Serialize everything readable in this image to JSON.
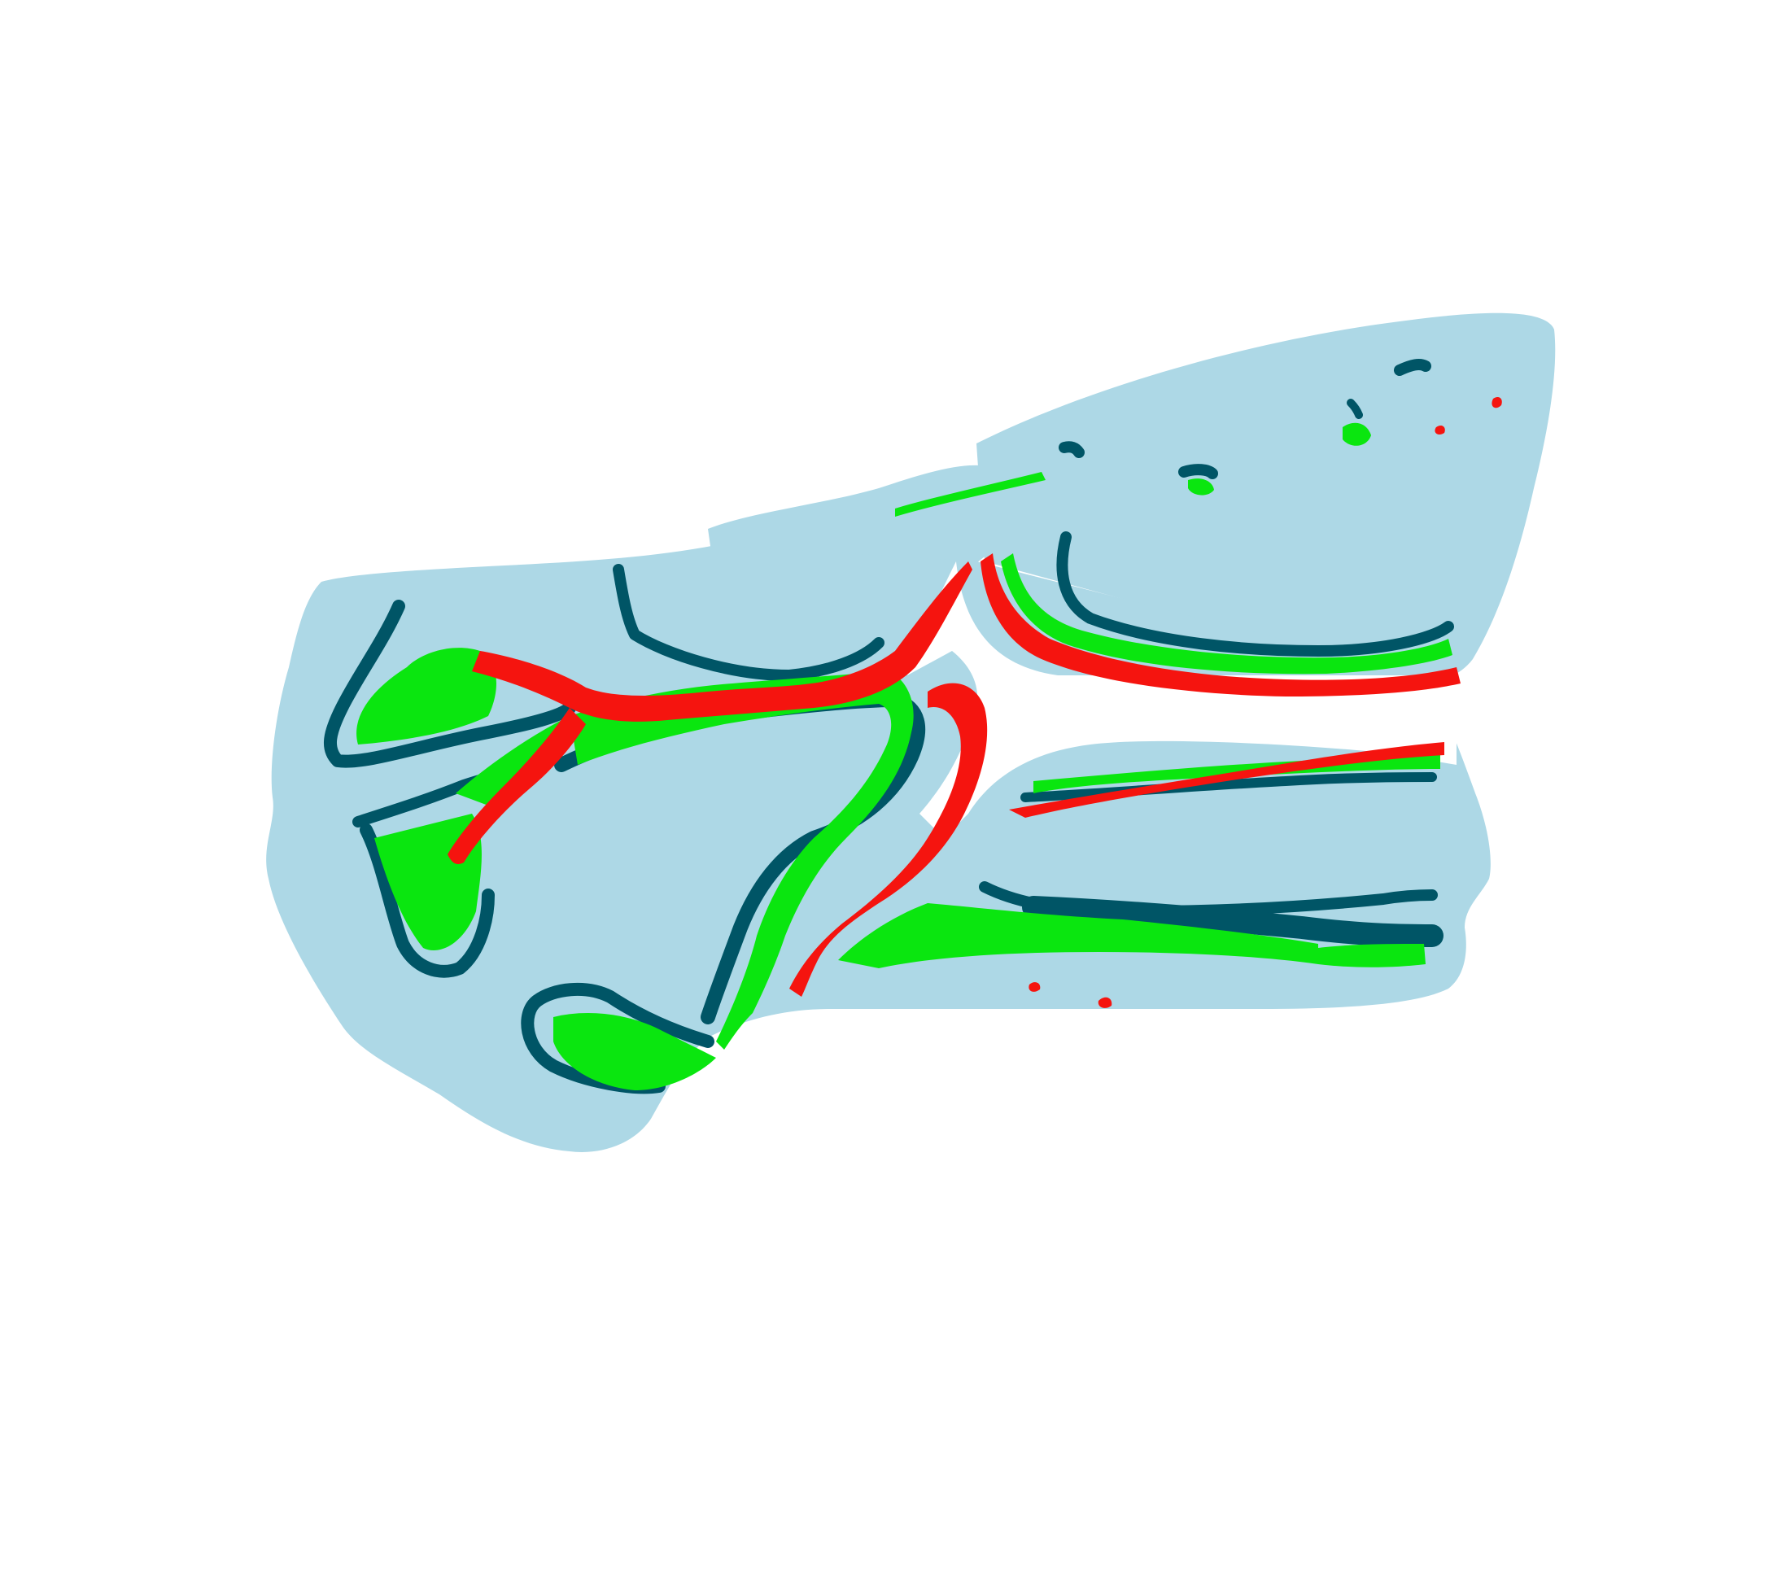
{
  "figure": {
    "description_visible_text": "",
    "colors": {
      "background": "#ffffff",
      "tissue": "#add8e6",
      "border": "#005566",
      "green_layer": "#0ae60f",
      "red_layer": "#f5140f"
    },
    "layers": [
      "tissue",
      "border",
      "green_layer",
      "red_layer"
    ]
  }
}
